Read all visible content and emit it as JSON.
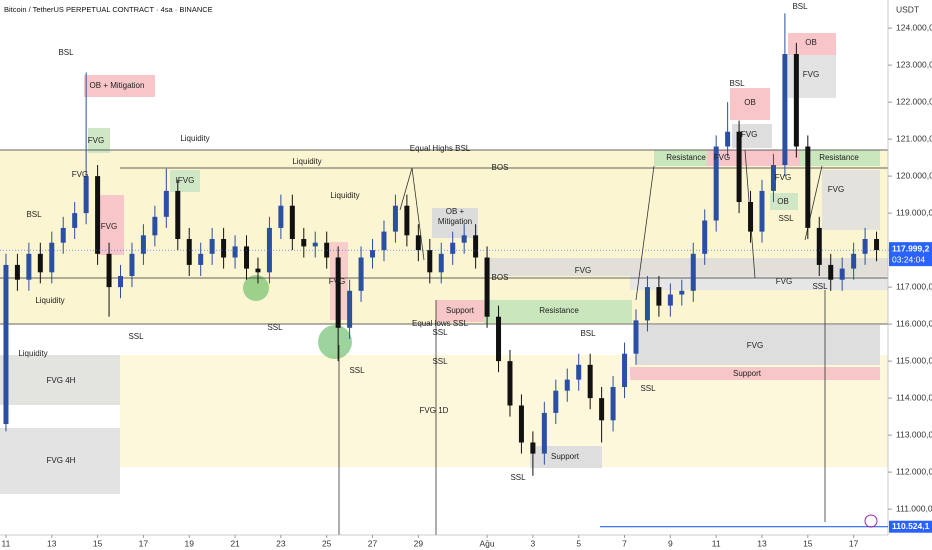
{
  "chart_data": {
    "type": "candlestick",
    "title": "Bitcoin / TetherUS PERPETUAL CONTRACT · 4sa · BINANCE",
    "y_axis_unit": "USDT",
    "up_color": "#2a4fa3",
    "down_color": "#111111",
    "open": [
      113300,
      117600,
      117200,
      117900,
      117400,
      118200,
      118600,
      119000,
      120000,
      117900,
      117000,
      117300,
      117900,
      118400,
      118900,
      119600,
      118300,
      117600,
      117900,
      118300,
      117800,
      118100,
      117500,
      117400,
      118600,
      119200,
      118300,
      118100,
      118200,
      117800,
      115900,
      116900,
      117800,
      118000,
      118500,
      119200,
      118400,
      118000,
      117400,
      117900,
      118200,
      118400,
      117800,
      116200,
      115000,
      113800,
      112800,
      112500,
      113600,
      114200,
      114500,
      114900,
      114000,
      113400,
      114300,
      115200,
      116100,
      117000,
      116500,
      116800,
      116900,
      117900,
      118800,
      120800,
      121200,
      119300,
      118500,
      119600,
      120300,
      123300,
      120800,
      118600,
      117600,
      117200,
      117500,
      117900,
      118300
    ],
    "high": [
      117900,
      117900,
      118200,
      118200,
      118500,
      118900,
      119300,
      122800,
      120300,
      118200,
      117600,
      118200,
      118700,
      119200,
      120200,
      119900,
      118600,
      118200,
      118600,
      118600,
      118400,
      118400,
      117800,
      118900,
      119500,
      119500,
      118600,
      118500,
      118500,
      118100,
      117200,
      118100,
      118300,
      118800,
      119500,
      119500,
      118700,
      118300,
      118200,
      118500,
      118700,
      118700,
      118100,
      116500,
      115300,
      114100,
      113100,
      113900,
      114500,
      114800,
      115200,
      115200,
      114300,
      114600,
      115500,
      116400,
      117300,
      117300,
      117100,
      117200,
      118200,
      119100,
      121100,
      122000,
      121500,
      119600,
      119900,
      120600,
      124400,
      123600,
      121100,
      118900,
      117900,
      117800,
      118200,
      118600,
      118500
    ],
    "low": [
      113100,
      116900,
      116900,
      117100,
      117100,
      117900,
      118300,
      118700,
      117600,
      116200,
      116700,
      117000,
      117600,
      118100,
      118600,
      118000,
      117300,
      117300,
      117600,
      117500,
      117500,
      117200,
      117100,
      117100,
      118300,
      118000,
      117800,
      117800,
      117500,
      115000,
      115600,
      116600,
      117500,
      117700,
      118200,
      118100,
      117700,
      117100,
      117100,
      117600,
      117900,
      117500,
      115900,
      114700,
      113500,
      112500,
      111900,
      112200,
      113300,
      113900,
      114200,
      113700,
      112800,
      113100,
      114000,
      114900,
      115800,
      116200,
      116200,
      116500,
      116600,
      117600,
      118500,
      120500,
      119000,
      118200,
      118200,
      119300,
      120000,
      120500,
      118300,
      117300,
      116900,
      116900,
      117200,
      117600,
      117700
    ],
    "close": [
      117600,
      117200,
      117900,
      117400,
      118200,
      118600,
      119000,
      120000,
      117900,
      117000,
      117300,
      117900,
      118400,
      118900,
      119600,
      118300,
      117600,
      117900,
      118300,
      117800,
      118100,
      117500,
      117400,
      118600,
      119200,
      118300,
      118100,
      118200,
      117800,
      115900,
      116900,
      117800,
      118000,
      118500,
      119200,
      118400,
      118000,
      117400,
      117900,
      118200,
      118400,
      117800,
      116200,
      115000,
      113800,
      112800,
      112500,
      113600,
      114200,
      114500,
      114900,
      114000,
      113400,
      114300,
      115200,
      116100,
      117000,
      116500,
      116800,
      116900,
      117900,
      118800,
      120800,
      121200,
      119300,
      118500,
      119600,
      120300,
      123300,
      120800,
      118600,
      117600,
      117200,
      117500,
      117900,
      118300,
      117999.2
    ],
    "xlim": [
      -0.52,
      77
    ],
    "xticks": [
      {
        "value": 0,
        "label": "11"
      },
      {
        "value": 4,
        "label": "13"
      },
      {
        "value": 8,
        "label": "15"
      },
      {
        "value": 12,
        "label": "17"
      },
      {
        "value": 16,
        "label": "19"
      },
      {
        "value": 20,
        "label": "21"
      },
      {
        "value": 24,
        "label": "23"
      },
      {
        "value": 28,
        "label": "25"
      },
      {
        "value": 32,
        "label": "27"
      },
      {
        "value": 36,
        "label": "29"
      },
      {
        "value": 42,
        "label": "Ağu"
      },
      {
        "value": 46,
        "label": "3"
      },
      {
        "value": 50,
        "label": "5"
      },
      {
        "value": 54,
        "label": "7"
      },
      {
        "value": 58,
        "label": "9"
      },
      {
        "value": 62,
        "label": "11"
      },
      {
        "value": 66,
        "label": "13"
      },
      {
        "value": 70,
        "label": "15"
      },
      {
        "value": 74,
        "label": "17"
      }
    ],
    "ylim": [
      110300,
      124760
    ],
    "yticks": [
      {
        "value": 111000,
        "label": "111.000,0"
      },
      {
        "value": 112000,
        "label": "112.000,0"
      },
      {
        "value": 113000,
        "label": "113.000,0"
      },
      {
        "value": 114000,
        "label": "114.000,0"
      },
      {
        "value": 115000,
        "label": "115.000,0"
      },
      {
        "value": 116000,
        "label": "116.000,0"
      },
      {
        "value": 117000,
        "label": "117.000,0"
      },
      {
        "value": 118000,
        "label": "118.000,0"
      },
      {
        "value": 119000,
        "label": "119.000,0"
      },
      {
        "value": 120000,
        "label": "120.000,0"
      },
      {
        "value": 121000,
        "label": "121.000,0"
      },
      {
        "value": 122000,
        "label": "122.000,0"
      },
      {
        "value": 123000,
        "label": "123.000,0"
      },
      {
        "value": 124000,
        "label": "124.000,0"
      }
    ],
    "price_markers": [
      {
        "value": 117999.2,
        "label": "117.999,2",
        "color": "#2962ff"
      },
      {
        "value": 110524.1,
        "label": "110.524,1",
        "color": "#2962ff"
      }
    ],
    "countdown": "03:24:04",
    "annotations": [
      "BSL",
      "OB + Mitigation",
      "FVG",
      "FVG",
      "BSL",
      "FVG",
      "Liquidity",
      "SSL",
      "Liquidity",
      "FVG 4H",
      "FVG 4H",
      "Liquidity",
      "IFVG",
      "Liquidity",
      "Liquidity",
      "SSL",
      "FVG",
      "SSL",
      "Equal Highs BSL",
      "BOS",
      "OB +",
      "Mitigation",
      "BOS",
      "Equal lows SSL",
      "SSL",
      "SSL",
      "Support",
      "Resistance",
      "FVG 1D",
      "FVG",
      "BSL",
      "SSL",
      "Support",
      "SSL",
      "Resistance",
      "FVG",
      "BSL",
      "OB",
      "IFVG",
      "FVG",
      "OB",
      "SSL",
      "FVG",
      "SSL",
      "BSL",
      "OB",
      "FVG",
      "Resistance",
      "FVG",
      "FVG",
      "Support"
    ]
  }
}
